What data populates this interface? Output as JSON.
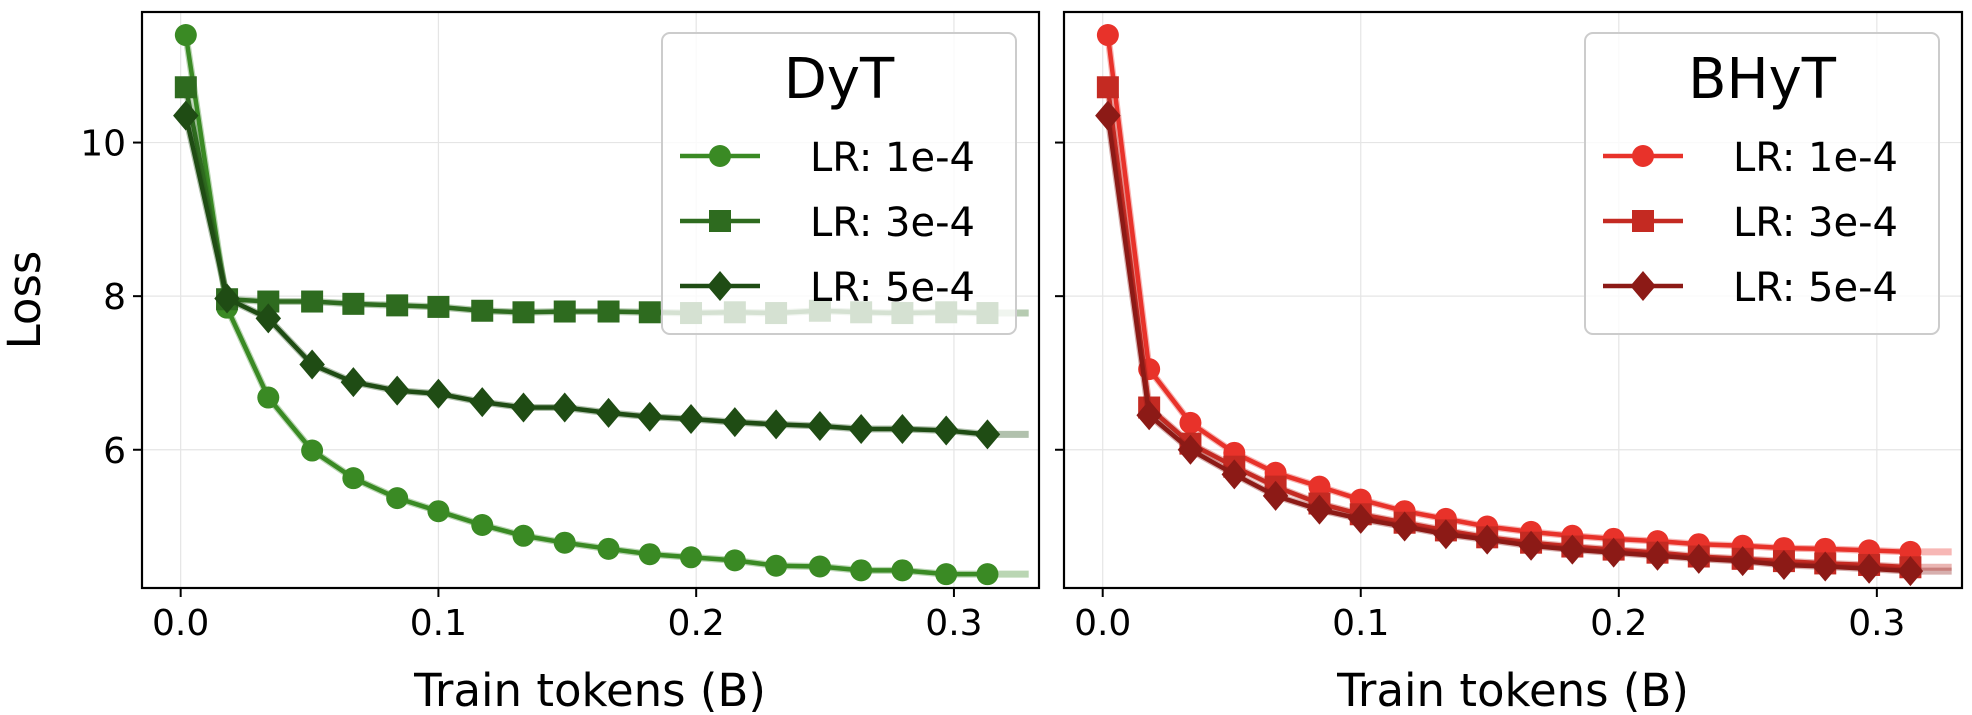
{
  "chart_data": [
    {
      "type": "line",
      "legend_title": "DyT",
      "xlabel": "Train tokens (B)",
      "ylabel": "Loss",
      "xlim": [
        -0.015,
        0.333
      ],
      "ylim": [
        4.2,
        11.7
      ],
      "xticks": [
        0.0,
        0.1,
        0.2,
        0.3
      ],
      "xtick_labels": [
        "0.0",
        "0.1",
        "0.2",
        "0.3"
      ],
      "yticks": [
        6,
        8,
        10
      ],
      "ytick_labels": [
        "6",
        "8",
        "10"
      ],
      "grid": true,
      "legend_position": "top-right",
      "series": [
        {
          "name": "LR: 1e-4",
          "marker": "circle",
          "color": "#3a8a24",
          "x": [
            0.002,
            0.018,
            0.034,
            0.051,
            0.067,
            0.084,
            0.1,
            0.117,
            0.133,
            0.149,
            0.166,
            0.182,
            0.198,
            0.215,
            0.231,
            0.248,
            0.264,
            0.28,
            0.297,
            0.313
          ],
          "values": [
            11.4,
            7.85,
            6.68,
            5.99,
            5.63,
            5.37,
            5.2,
            5.02,
            4.88,
            4.79,
            4.71,
            4.64,
            4.6,
            4.56,
            4.49,
            4.48,
            4.43,
            4.43,
            4.38,
            4.38
          ]
        },
        {
          "name": "LR: 3e-4",
          "marker": "square",
          "color": "#2e6b1f",
          "x": [
            0.002,
            0.018,
            0.034,
            0.051,
            0.067,
            0.084,
            0.1,
            0.117,
            0.133,
            0.149,
            0.166,
            0.182,
            0.198,
            0.215,
            0.231,
            0.248,
            0.264,
            0.28,
            0.297,
            0.313
          ],
          "values": [
            10.72,
            7.96,
            7.93,
            7.93,
            7.9,
            7.88,
            7.86,
            7.81,
            7.79,
            7.8,
            7.8,
            7.79,
            7.78,
            7.79,
            7.78,
            7.81,
            7.79,
            7.78,
            7.79,
            7.78
          ]
        },
        {
          "name": "LR: 5e-4",
          "marker": "diamond",
          "color": "#1f4c14",
          "x": [
            0.002,
            0.018,
            0.034,
            0.051,
            0.067,
            0.084,
            0.1,
            0.117,
            0.133,
            0.149,
            0.166,
            0.182,
            0.198,
            0.215,
            0.231,
            0.248,
            0.264,
            0.28,
            0.297,
            0.313
          ],
          "values": [
            10.35,
            7.97,
            7.71,
            7.11,
            6.88,
            6.77,
            6.73,
            6.62,
            6.55,
            6.55,
            6.48,
            6.43,
            6.4,
            6.36,
            6.33,
            6.31,
            6.27,
            6.27,
            6.25,
            6.2
          ]
        }
      ]
    },
    {
      "type": "line",
      "legend_title": "BHyT",
      "xlabel": "Train tokens (B)",
      "ylabel": "",
      "xlim": [
        -0.015,
        0.333
      ],
      "ylim": [
        4.2,
        11.7
      ],
      "xticks": [
        0.0,
        0.1,
        0.2,
        0.3
      ],
      "xtick_labels": [
        "0.0",
        "0.1",
        "0.2",
        "0.3"
      ],
      "yticks": [
        6,
        8,
        10
      ],
      "ytick_labels": [],
      "grid": true,
      "legend_position": "top-right",
      "series": [
        {
          "name": "LR: 1e-4",
          "marker": "circle",
          "color": "#e8322a",
          "x": [
            0.002,
            0.018,
            0.034,
            0.051,
            0.067,
            0.084,
            0.1,
            0.117,
            0.133,
            0.149,
            0.166,
            0.182,
            0.198,
            0.215,
            0.231,
            0.248,
            0.264,
            0.28,
            0.297,
            0.313
          ],
          "values": [
            11.4,
            7.05,
            6.35,
            5.96,
            5.7,
            5.52,
            5.35,
            5.2,
            5.1,
            5.0,
            4.93,
            4.88,
            4.84,
            4.81,
            4.77,
            4.75,
            4.72,
            4.71,
            4.69,
            4.67
          ]
        },
        {
          "name": "LR: 3e-4",
          "marker": "square",
          "color": "#c42a22",
          "x": [
            0.002,
            0.018,
            0.034,
            0.051,
            0.067,
            0.084,
            0.1,
            0.117,
            0.133,
            0.149,
            0.166,
            0.182,
            0.198,
            0.215,
            0.231,
            0.248,
            0.264,
            0.28,
            0.297,
            0.313
          ],
          "values": [
            10.72,
            6.55,
            6.08,
            5.78,
            5.52,
            5.3,
            5.16,
            5.05,
            4.95,
            4.86,
            4.79,
            4.74,
            4.7,
            4.66,
            4.61,
            4.58,
            4.55,
            4.52,
            4.5,
            4.47
          ]
        },
        {
          "name": "LR: 5e-4",
          "marker": "diamond",
          "color": "#8c1a16",
          "x": [
            0.002,
            0.018,
            0.034,
            0.051,
            0.067,
            0.084,
            0.1,
            0.117,
            0.133,
            0.149,
            0.166,
            0.182,
            0.198,
            0.215,
            0.231,
            0.248,
            0.264,
            0.28,
            0.297,
            0.313
          ],
          "values": [
            10.35,
            6.45,
            6.0,
            5.68,
            5.4,
            5.22,
            5.1,
            5.0,
            4.9,
            4.83,
            4.75,
            4.7,
            4.66,
            4.62,
            4.58,
            4.55,
            4.5,
            4.48,
            4.45,
            4.42
          ]
        }
      ]
    }
  ]
}
